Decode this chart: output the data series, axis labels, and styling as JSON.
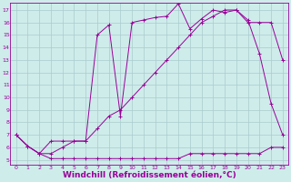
{
  "bg_color": "#ceecea",
  "line_color": "#990099",
  "grid_color": "#aacccc",
  "xlabel": "Windchill (Refroidissement éolien,°C)",
  "xlabel_fontsize": 6.5,
  "ylabel_ticks": [
    5,
    6,
    7,
    8,
    9,
    10,
    11,
    12,
    13,
    14,
    15,
    16,
    17
  ],
  "xlabel_ticks": [
    0,
    1,
    2,
    3,
    4,
    5,
    6,
    7,
    8,
    9,
    10,
    11,
    12,
    13,
    14,
    15,
    16,
    17,
    18,
    19,
    20,
    21,
    22,
    23
  ],
  "xlim": [
    -0.5,
    23.5
  ],
  "ylim": [
    4.6,
    17.6
  ],
  "series": [
    {
      "x": [
        0,
        1,
        2,
        3,
        4,
        5,
        6,
        7,
        8,
        9,
        10,
        11,
        12,
        13,
        14,
        15,
        16,
        17,
        18,
        19,
        20,
        21,
        22,
        23
      ],
      "y": [
        7,
        6.1,
        5.5,
        5.1,
        5.1,
        5.1,
        5.1,
        5.1,
        5.1,
        5.1,
        5.1,
        5.1,
        5.1,
        5.1,
        5.1,
        5.5,
        5.5,
        5.5,
        5.5,
        5.5,
        5.5,
        5.5,
        6.0,
        6.0
      ]
    },
    {
      "x": [
        0,
        1,
        2,
        3,
        4,
        5,
        6,
        7,
        8,
        9,
        10,
        11,
        12,
        13,
        14,
        15,
        16,
        17,
        18,
        19,
        20,
        21,
        22,
        23
      ],
      "y": [
        7,
        6.1,
        5.5,
        5.5,
        6.0,
        6.5,
        6.5,
        7.5,
        8.5,
        9.0,
        10.0,
        11.0,
        12.0,
        13.0,
        14.0,
        15.0,
        16.0,
        16.5,
        17.0,
        17.0,
        16.0,
        16.0,
        16.0,
        13.0
      ]
    },
    {
      "x": [
        0,
        1,
        2,
        3,
        4,
        5,
        6,
        7,
        8,
        9,
        10,
        11,
        12,
        13,
        14,
        15,
        16,
        17,
        18,
        19,
        20,
        21,
        22,
        23
      ],
      "y": [
        7,
        6.1,
        5.5,
        6.5,
        6.5,
        6.5,
        6.5,
        15.0,
        15.8,
        8.5,
        16.0,
        16.2,
        16.4,
        16.5,
        17.5,
        15.5,
        16.3,
        17.0,
        16.8,
        17.0,
        16.2,
        13.5,
        9.5,
        7.0
      ]
    }
  ]
}
